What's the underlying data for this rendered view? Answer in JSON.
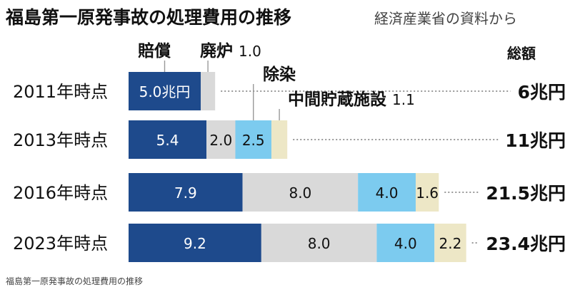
{
  "caption": "福島第一原発事故の処理費用の推移",
  "chart_data": {
    "type": "bar",
    "orientation": "horizontal",
    "stacked": true,
    "title": "福島第一原発事故の処理費用の推移",
    "subtitle": "経済産業省の資料から",
    "unit": "兆円",
    "total_header": "総額",
    "categories": [
      "2011年時点",
      "2013年時点",
      "2016年時点",
      "2023年時点"
    ],
    "series": [
      {
        "name": "賠償",
        "color": "#1e4a8c",
        "text_color": "#ffffff",
        "values": [
          5.0,
          5.4,
          7.9,
          9.2
        ],
        "labels": [
          "5.0兆円",
          "5.4",
          "7.9",
          "9.2"
        ]
      },
      {
        "name": "廃炉",
        "color": "#d9d9d9",
        "text_color": "#111111",
        "values": [
          1.0,
          2.0,
          8.0,
          8.0
        ],
        "labels": [
          "",
          "2.0",
          "8.0",
          "8.0"
        ]
      },
      {
        "name": "除染",
        "color": "#7ccbef",
        "text_color": "#111111",
        "values": [
          0,
          2.5,
          4.0,
          4.0
        ],
        "labels": [
          "",
          "2.5",
          "4.0",
          "4.0"
        ]
      },
      {
        "name": "中間貯蔵施設",
        "color": "#ede7c6",
        "text_color": "#111111",
        "values": [
          0,
          1.1,
          1.6,
          2.2
        ],
        "labels": [
          "",
          "",
          "1.6",
          "2.2"
        ]
      }
    ],
    "totals": [
      "6兆円",
      "11兆円",
      "21.5兆円",
      "23.4兆円"
    ],
    "callouts": [
      {
        "series": "賠償",
        "text": "賠償",
        "value": ""
      },
      {
        "series": "廃炉",
        "text": "廃炉",
        "value": "1.0"
      },
      {
        "series": "除染",
        "text": "除染",
        "value": ""
      },
      {
        "series": "中間貯蔵施設",
        "text": "中間貯蔵施設",
        "value": "1.1"
      }
    ]
  }
}
